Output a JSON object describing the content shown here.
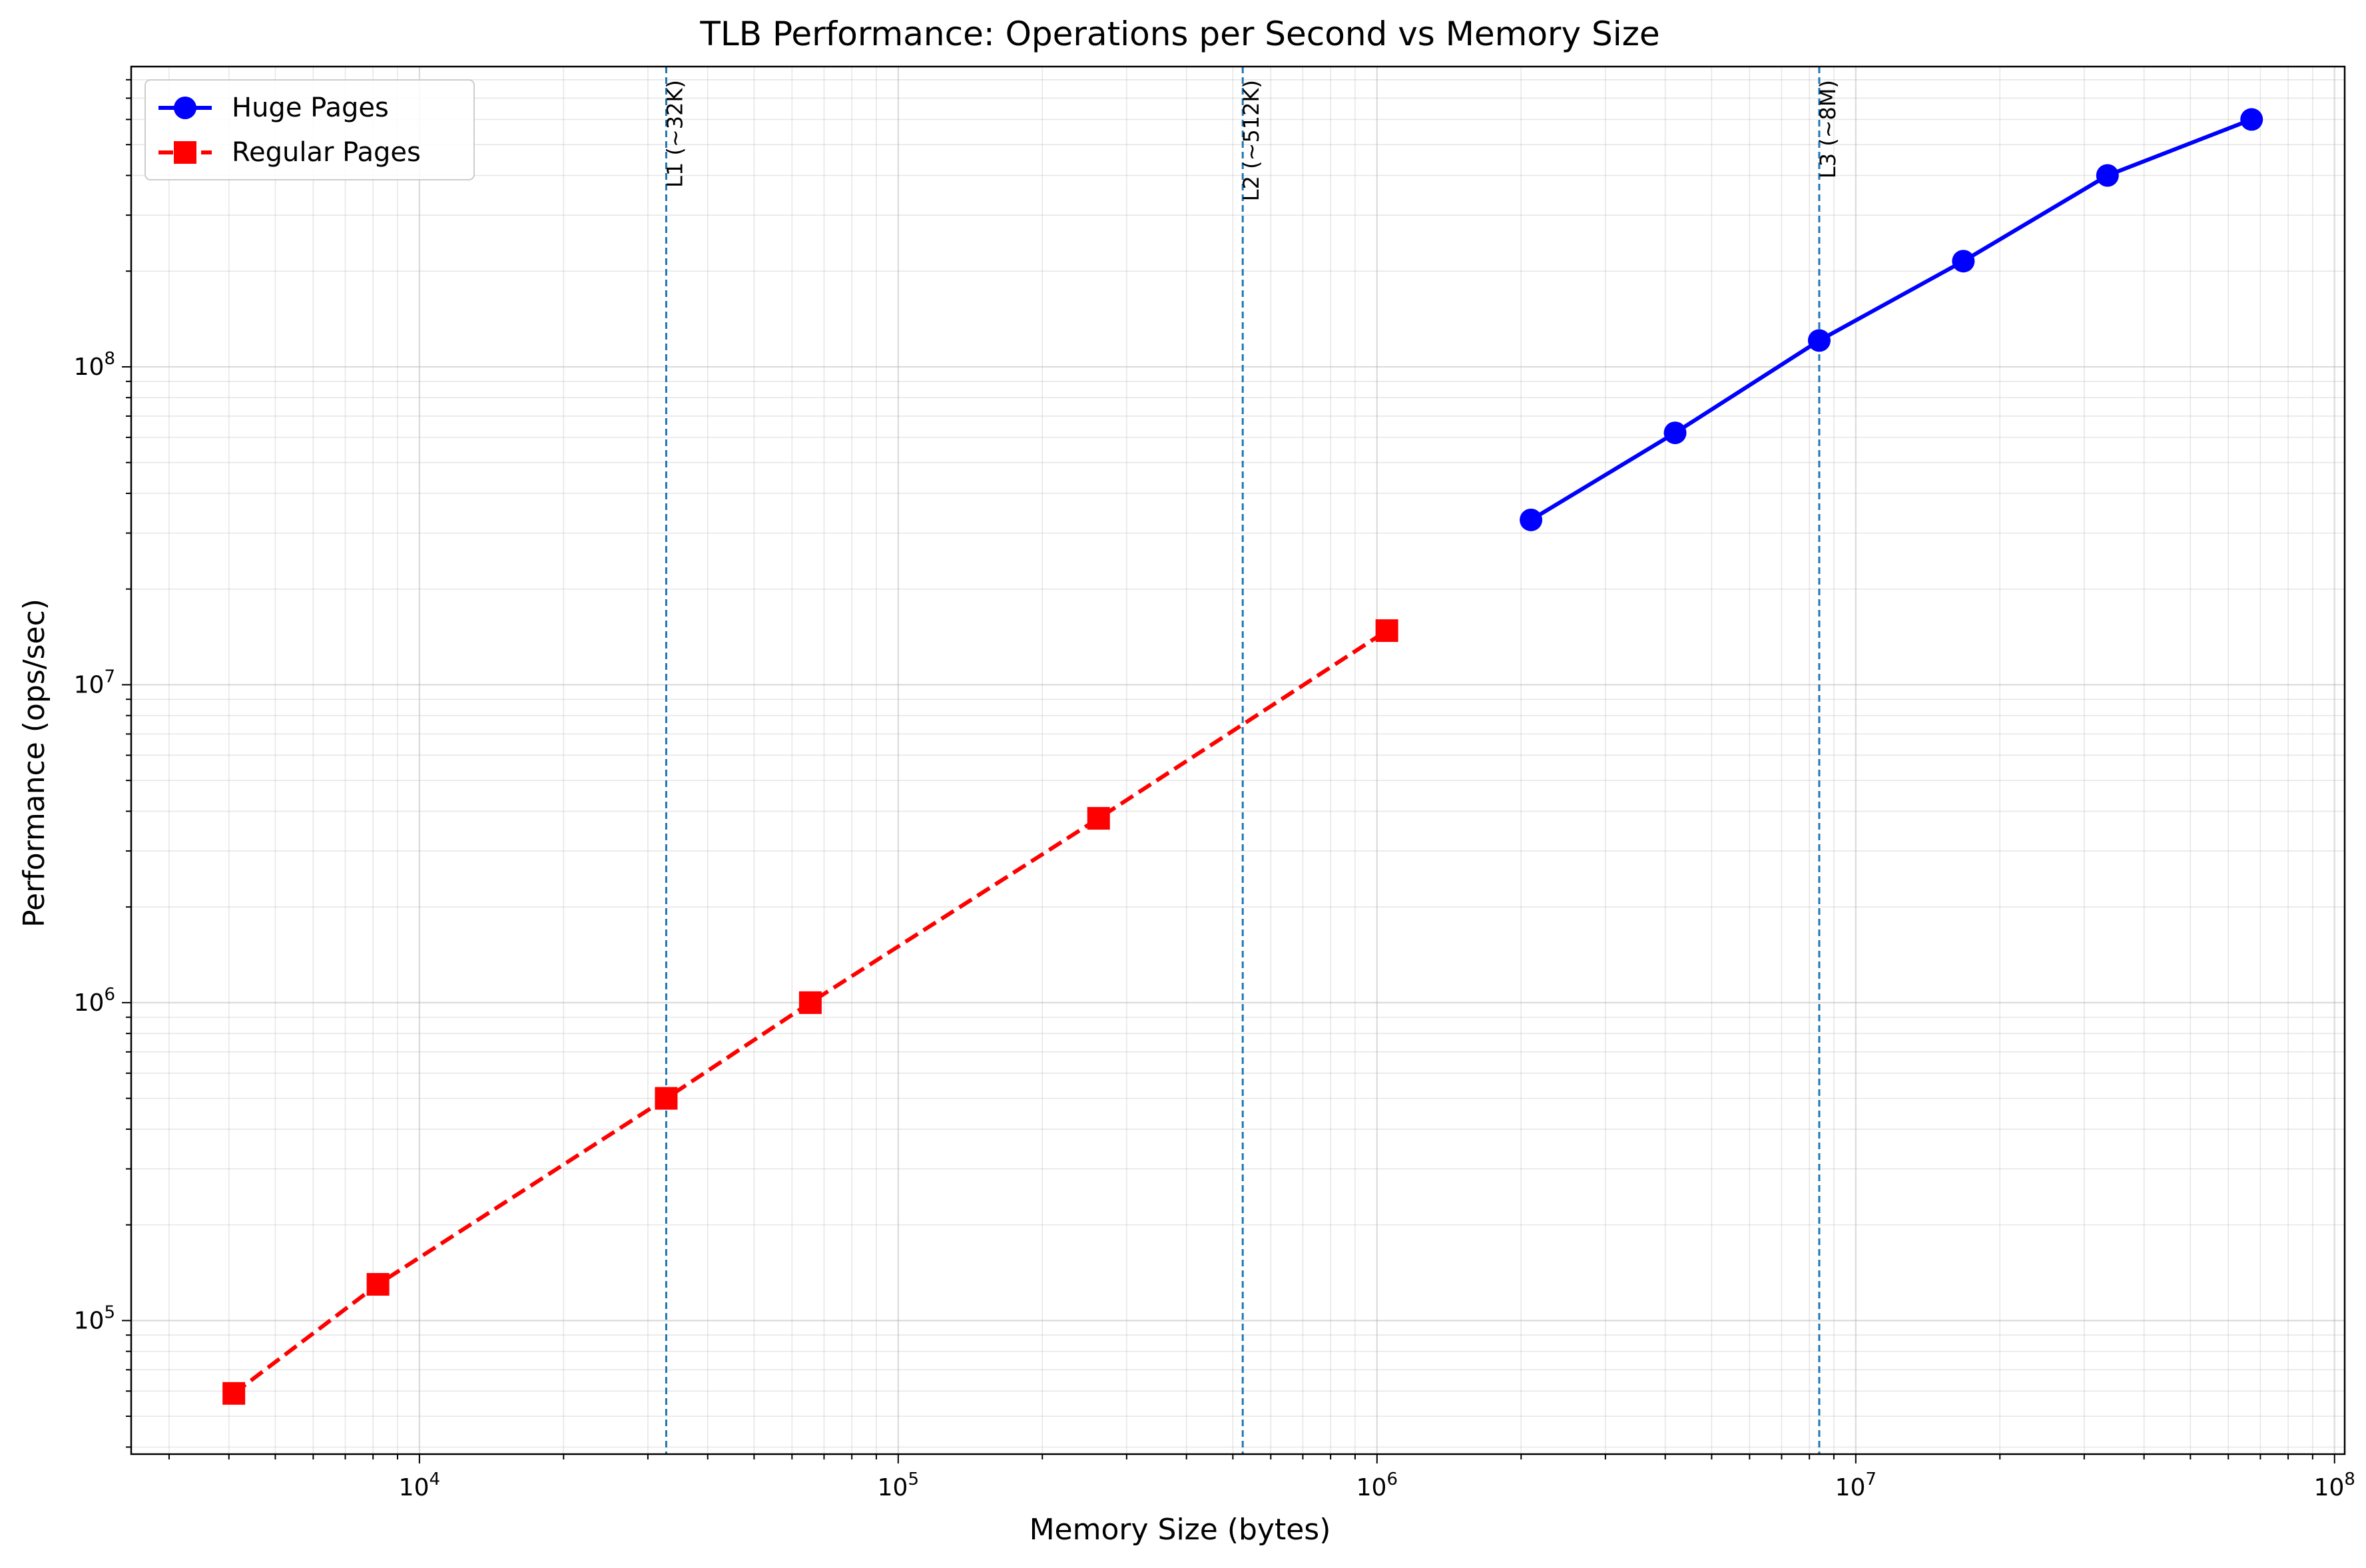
{
  "chart_data": {
    "type": "line",
    "title": "TLB Performance: Operations per Second vs Memory Size",
    "xlabel": "Memory Size (bytes)",
    "ylabel": "Performance (ops/sec)",
    "xscale": "log",
    "yscale": "log",
    "xlim": [
      2500,
      105000000
    ],
    "ylim": [
      38000,
      880000000
    ],
    "grid": "on (major and minor)",
    "legend_position": "top-left",
    "x_ticks": [
      10000,
      100000,
      1000000,
      10000000,
      100000000
    ],
    "y_ticks": [
      100000,
      1000000,
      10000000,
      100000000
    ],
    "series": [
      {
        "name": "Huge Pages",
        "color": "#0000ff",
        "line_style": "solid",
        "marker": "circle",
        "x": [
          2097152,
          4194304,
          8388608,
          16777216,
          33554432,
          67108864
        ],
        "y": [
          33000000,
          62000000,
          121000000,
          215000000,
          400000000,
          600000000
        ]
      },
      {
        "name": "Regular Pages",
        "color": "#ff0000",
        "line_style": "dashed",
        "marker": "square",
        "x": [
          4096,
          8192,
          32768,
          65536,
          262144,
          1048576
        ],
        "y": [
          59000,
          130000,
          500000,
          1000000,
          3800000,
          14800000
        ]
      }
    ],
    "vlines": [
      {
        "x": 32768,
        "label": "L1 (~32K)",
        "color": "#1f77b4",
        "style": "dashed"
      },
      {
        "x": 524288,
        "label": "L2 (~512K)",
        "color": "#1f77b4",
        "style": "dashed"
      },
      {
        "x": 8388608,
        "label": "L3 (~8M)",
        "color": "#1f77b4",
        "style": "dashed"
      }
    ]
  }
}
